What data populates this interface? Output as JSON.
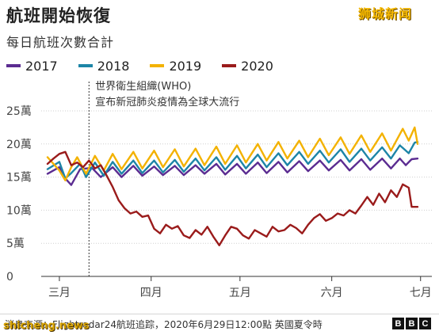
{
  "header": {
    "title": "航班開始恢復",
    "subtitle": "每日航班次數合計",
    "brand_mark": "狮城新闻"
  },
  "footer": {
    "source": "消息來源：Flightradar24航班追踪，2020年6月29日12:00點 英國夏令時",
    "bbc_letters": [
      "B",
      "B",
      "C"
    ],
    "watermark": "shicheng.news"
  },
  "chart_data": {
    "type": "line",
    "title": "航班開始恢復",
    "subtitle": "每日航班次數合計",
    "xlabel": "",
    "ylabel": "",
    "x_domain": [
      "02-26",
      "06-30"
    ],
    "x_ticks": [
      {
        "date": "03-01",
        "label": "三月"
      },
      {
        "date": "04-01",
        "label": "四月"
      },
      {
        "date": "05-01",
        "label": "五月"
      },
      {
        "date": "06-01",
        "label": "六月"
      },
      {
        "date": "07-01",
        "label": "七月"
      }
    ],
    "ylim": [
      0,
      27
    ],
    "y_ticks": [
      {
        "value": 0,
        "label": "0"
      },
      {
        "value": 5,
        "label": "5萬"
      },
      {
        "value": 10,
        "label": "10萬"
      },
      {
        "value": 15,
        "label": "15萬"
      },
      {
        "value": 20,
        "label": "20萬"
      },
      {
        "value": 25,
        "label": "25萬"
      }
    ],
    "grid": "horizontal dotted",
    "legend": "top-left",
    "annotation": {
      "date": "03-11",
      "lines": [
        "世界衛生組織(WHO)",
        "宣布新冠肺炎疫情為全球大流行"
      ]
    },
    "series": [
      {
        "name": "2017",
        "color": "#5b2c91",
        "points": [
          [
            "02-26",
            15.5
          ],
          [
            "03-01",
            16.5
          ],
          [
            "03-03",
            14.8
          ],
          [
            "03-05",
            13.8
          ],
          [
            "03-08",
            16.2
          ],
          [
            "03-12",
            16.4
          ],
          [
            "03-15",
            15.0
          ],
          [
            "03-19",
            16.5
          ],
          [
            "03-22",
            15.0
          ],
          [
            "03-26",
            16.7
          ],
          [
            "03-29",
            15.2
          ],
          [
            "04-02",
            16.6
          ],
          [
            "04-05",
            15.3
          ],
          [
            "04-09",
            16.7
          ],
          [
            "04-12",
            15.3
          ],
          [
            "04-16",
            16.8
          ],
          [
            "04-19",
            15.5
          ],
          [
            "04-23",
            17.0
          ],
          [
            "04-26",
            15.4
          ],
          [
            "04-30",
            17.0
          ],
          [
            "05-03",
            15.5
          ],
          [
            "05-07",
            17.2
          ],
          [
            "05-10",
            15.6
          ],
          [
            "05-14",
            17.3
          ],
          [
            "05-17",
            15.7
          ],
          [
            "05-21",
            17.4
          ],
          [
            "05-24",
            15.9
          ],
          [
            "05-28",
            17.5
          ],
          [
            "05-31",
            16.0
          ],
          [
            "06-04",
            17.6
          ],
          [
            "06-07",
            16.0
          ],
          [
            "06-11",
            17.7
          ],
          [
            "06-14",
            16.1
          ],
          [
            "06-18",
            17.8
          ],
          [
            "06-21",
            16.3
          ],
          [
            "06-24",
            17.8
          ],
          [
            "06-26",
            16.8
          ],
          [
            "06-28",
            17.7
          ],
          [
            "06-30",
            17.8
          ]
        ]
      },
      {
        "name": "2018",
        "color": "#1d85a7",
        "points": [
          [
            "02-26",
            16.2
          ],
          [
            "03-01",
            17.3
          ],
          [
            "03-03",
            14.8
          ],
          [
            "03-05",
            15.6
          ],
          [
            "03-08",
            17.0
          ],
          [
            "03-10",
            15.0
          ],
          [
            "03-13",
            17.2
          ],
          [
            "03-16",
            15.2
          ],
          [
            "03-19",
            17.3
          ],
          [
            "03-22",
            15.5
          ],
          [
            "03-26",
            17.5
          ],
          [
            "03-29",
            15.6
          ],
          [
            "04-02",
            17.5
          ],
          [
            "04-05",
            15.7
          ],
          [
            "04-09",
            17.6
          ],
          [
            "04-12",
            15.8
          ],
          [
            "04-16",
            17.8
          ],
          [
            "04-19",
            16.0
          ],
          [
            "04-23",
            18.0
          ],
          [
            "04-26",
            16.1
          ],
          [
            "04-30",
            18.2
          ],
          [
            "05-03",
            16.3
          ],
          [
            "05-07",
            18.4
          ],
          [
            "05-10",
            16.5
          ],
          [
            "05-14",
            18.6
          ],
          [
            "05-17",
            16.8
          ],
          [
            "05-21",
            18.8
          ],
          [
            "05-24",
            17.0
          ],
          [
            "05-28",
            19.0
          ],
          [
            "05-31",
            17.2
          ],
          [
            "06-04",
            19.2
          ],
          [
            "06-07",
            17.3
          ],
          [
            "06-11",
            19.3
          ],
          [
            "06-14",
            17.5
          ],
          [
            "06-18",
            19.5
          ],
          [
            "06-21",
            17.8
          ],
          [
            "06-24",
            19.8
          ],
          [
            "06-27",
            18.6
          ],
          [
            "06-29",
            20.2
          ],
          [
            "06-30",
            20.3
          ]
        ]
      },
      {
        "name": "2019",
        "color": "#f3b200",
        "points": [
          [
            "02-26",
            18.0
          ],
          [
            "03-01",
            16.0
          ],
          [
            "03-03",
            14.5
          ],
          [
            "03-05",
            16.5
          ],
          [
            "03-07",
            18.0
          ],
          [
            "03-10",
            15.5
          ],
          [
            "03-13",
            18.2
          ],
          [
            "03-16",
            16.0
          ],
          [
            "03-19",
            18.5
          ],
          [
            "03-22",
            16.2
          ],
          [
            "03-26",
            18.8
          ],
          [
            "03-29",
            16.3
          ],
          [
            "04-02",
            19.0
          ],
          [
            "04-05",
            16.5
          ],
          [
            "04-09",
            19.2
          ],
          [
            "04-12",
            16.6
          ],
          [
            "04-16",
            19.3
          ],
          [
            "04-19",
            16.8
          ],
          [
            "04-23",
            19.6
          ],
          [
            "04-26",
            17.0
          ],
          [
            "04-30",
            19.8
          ],
          [
            "05-03",
            17.2
          ],
          [
            "05-07",
            20.0
          ],
          [
            "05-10",
            17.5
          ],
          [
            "05-14",
            20.3
          ],
          [
            "05-17",
            17.8
          ],
          [
            "05-21",
            20.5
          ],
          [
            "05-24",
            18.0
          ],
          [
            "05-28",
            20.8
          ],
          [
            "05-31",
            18.3
          ],
          [
            "06-04",
            21.0
          ],
          [
            "06-07",
            18.5
          ],
          [
            "06-11",
            21.3
          ],
          [
            "06-14",
            18.8
          ],
          [
            "06-18",
            21.6
          ],
          [
            "06-21",
            19.0
          ],
          [
            "06-25",
            22.3
          ],
          [
            "06-27",
            20.5
          ],
          [
            "06-29",
            22.5
          ],
          [
            "06-30",
            20.0
          ]
        ]
      },
      {
        "name": "2020",
        "color": "#9a1b1b",
        "points": [
          [
            "02-26",
            17.0
          ],
          [
            "02-28",
            17.8
          ],
          [
            "03-01",
            18.5
          ],
          [
            "03-03",
            18.8
          ],
          [
            "03-05",
            16.8
          ],
          [
            "03-07",
            17.2
          ],
          [
            "03-09",
            16.5
          ],
          [
            "03-11",
            17.5
          ],
          [
            "03-13",
            16.3
          ],
          [
            "03-15",
            16.8
          ],
          [
            "03-17",
            15.2
          ],
          [
            "03-19",
            13.5
          ],
          [
            "03-21",
            11.5
          ],
          [
            "03-23",
            10.3
          ],
          [
            "03-25",
            9.5
          ],
          [
            "03-27",
            9.8
          ],
          [
            "03-29",
            9.0
          ],
          [
            "03-31",
            9.2
          ],
          [
            "04-02",
            7.2
          ],
          [
            "04-04",
            6.5
          ],
          [
            "04-06",
            7.8
          ],
          [
            "04-08",
            7.2
          ],
          [
            "04-10",
            7.6
          ],
          [
            "04-12",
            6.2
          ],
          [
            "04-14",
            5.8
          ],
          [
            "04-16",
            7.0
          ],
          [
            "04-18",
            6.3
          ],
          [
            "04-20",
            7.5
          ],
          [
            "04-22",
            6.0
          ],
          [
            "04-24",
            4.7
          ],
          [
            "04-26",
            6.2
          ],
          [
            "04-28",
            7.5
          ],
          [
            "04-30",
            7.2
          ],
          [
            "05-02",
            6.2
          ],
          [
            "05-04",
            5.7
          ],
          [
            "05-06",
            7.0
          ],
          [
            "05-08",
            6.5
          ],
          [
            "05-10",
            6.0
          ],
          [
            "05-12",
            7.5
          ],
          [
            "05-14",
            6.8
          ],
          [
            "05-16",
            7.0
          ],
          [
            "05-18",
            7.8
          ],
          [
            "05-20",
            7.3
          ],
          [
            "05-22",
            6.5
          ],
          [
            "05-24",
            7.8
          ],
          [
            "05-26",
            8.8
          ],
          [
            "05-28",
            9.4
          ],
          [
            "05-30",
            8.4
          ],
          [
            "06-01",
            8.8
          ],
          [
            "06-03",
            9.5
          ],
          [
            "06-05",
            9.2
          ],
          [
            "06-07",
            10.0
          ],
          [
            "06-09",
            9.5
          ],
          [
            "06-11",
            10.7
          ],
          [
            "06-13",
            12.0
          ],
          [
            "06-15",
            10.8
          ],
          [
            "06-17",
            12.5
          ],
          [
            "06-19",
            11.2
          ],
          [
            "06-21",
            13.0
          ],
          [
            "06-23",
            12.0
          ],
          [
            "06-25",
            13.9
          ],
          [
            "06-27",
            13.4
          ],
          [
            "06-28",
            10.5
          ],
          [
            "06-30",
            10.5
          ]
        ]
      }
    ]
  }
}
